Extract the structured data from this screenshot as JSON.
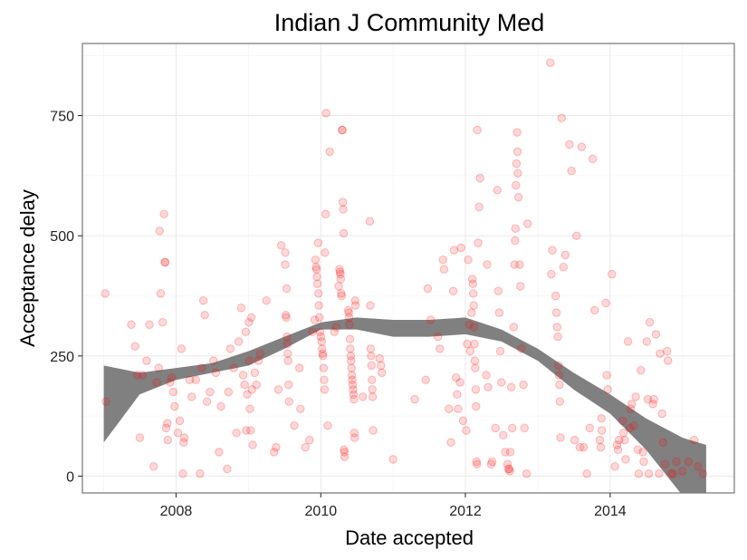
{
  "chart_data": {
    "type": "scatter",
    "title": "Indian J Community Med",
    "xlabel": "Date accepted",
    "ylabel": "Acceptance delay",
    "x_range": [
      "2006-09-15",
      "2015-09-20"
    ],
    "ylim": [
      -35,
      900
    ],
    "x_ticks": [
      {
        "date": "2008-01-01",
        "label": "2008"
      },
      {
        "date": "2010-01-01",
        "label": "2010"
      },
      {
        "date": "2012-01-01",
        "label": "2012"
      },
      {
        "date": "2014-01-01",
        "label": "2014"
      }
    ],
    "y_ticks": [
      {
        "value": 0,
        "label": "0"
      },
      {
        "value": 250,
        "label": "250"
      },
      {
        "value": 500,
        "label": "500"
      },
      {
        "value": 750,
        "label": "750"
      }
    ],
    "grid": true,
    "legend": "none",
    "colors": {
      "points": "#ff0000",
      "smooth_band": "#808080",
      "grid": "#ebebeb",
      "panel_border": "#7f7f7f"
    },
    "point_alpha": 0.15,
    "points": [
      [
        "2007-01-08",
        380
      ],
      [
        "2007-01-12",
        155
      ],
      [
        "2007-05-20",
        315
      ],
      [
        "2007-06-08",
        270
      ],
      [
        "2007-06-20",
        210
      ],
      [
        "2007-07-02",
        80
      ],
      [
        "2007-07-15",
        210
      ],
      [
        "2007-08-05",
        240
      ],
      [
        "2007-08-20",
        315
      ],
      [
        "2007-09-10",
        20
      ],
      [
        "2007-09-25",
        195
      ],
      [
        "2007-10-05",
        225
      ],
      [
        "2007-10-10",
        510
      ],
      [
        "2007-10-15",
        380
      ],
      [
        "2007-10-25",
        320
      ],
      [
        "2007-11-01",
        545
      ],
      [
        "2007-11-05",
        445
      ],
      [
        "2007-11-08",
        445
      ],
      [
        "2007-11-12",
        100
      ],
      [
        "2007-11-18",
        110
      ],
      [
        "2007-11-20",
        75
      ],
      [
        "2007-12-02",
        195
      ],
      [
        "2007-12-10",
        205
      ],
      [
        "2007-12-18",
        175
      ],
      [
        "2007-12-25",
        145
      ],
      [
        "2008-01-10",
        90
      ],
      [
        "2008-01-20",
        115
      ],
      [
        "2008-01-28",
        265
      ],
      [
        "2008-02-08",
        70
      ],
      [
        "2008-02-12",
        80
      ],
      [
        "2008-02-05",
        5
      ],
      [
        "2008-03-10",
        200
      ],
      [
        "2008-03-20",
        165
      ],
      [
        "2008-04-10",
        200
      ],
      [
        "2008-05-01",
        5
      ],
      [
        "2008-05-10",
        225
      ],
      [
        "2008-05-18",
        365
      ],
      [
        "2008-05-25",
        335
      ],
      [
        "2008-06-05",
        155
      ],
      [
        "2008-06-20",
        175
      ],
      [
        "2008-07-08",
        240
      ],
      [
        "2008-07-20",
        215
      ],
      [
        "2008-08-05",
        50
      ],
      [
        "2008-08-15",
        145
      ],
      [
        "2008-09-15",
        15
      ],
      [
        "2008-09-22",
        175
      ],
      [
        "2008-10-01",
        265
      ],
      [
        "2008-10-18",
        225
      ],
      [
        "2008-11-01",
        90
      ],
      [
        "2008-11-12",
        280
      ],
      [
        "2008-11-25",
        350
      ],
      [
        "2008-12-05",
        210
      ],
      [
        "2008-12-12",
        190
      ],
      [
        "2008-12-18",
        300
      ],
      [
        "2008-12-20",
        95
      ],
      [
        "2008-12-25",
        170
      ],
      [
        "2009-01-03",
        320
      ],
      [
        "2009-01-05",
        240
      ],
      [
        "2009-01-08",
        140
      ],
      [
        "2009-01-12",
        95
      ],
      [
        "2009-01-15",
        330
      ],
      [
        "2009-01-18",
        180
      ],
      [
        "2009-01-22",
        65
      ],
      [
        "2009-02-01",
        215
      ],
      [
        "2009-02-10",
        190
      ],
      [
        "2009-02-20",
        240
      ],
      [
        "2009-03-01",
        255
      ],
      [
        "2009-04-01",
        365
      ],
      [
        "2009-05-10",
        50
      ],
      [
        "2009-05-20",
        60
      ],
      [
        "2009-06-01",
        180
      ],
      [
        "2009-06-15",
        480
      ],
      [
        "2009-07-05",
        440
      ],
      [
        "2009-07-05",
        465
      ],
      [
        "2009-07-08",
        335
      ],
      [
        "2009-07-10",
        330
      ],
      [
        "2009-07-12",
        390
      ],
      [
        "2009-07-14",
        290
      ],
      [
        "2009-07-16",
        275
      ],
      [
        "2009-07-18",
        255
      ],
      [
        "2009-07-20",
        240
      ],
      [
        "2009-07-22",
        190
      ],
      [
        "2009-07-25",
        155
      ],
      [
        "2009-08-20",
        105
      ],
      [
        "2009-09-15",
        225
      ],
      [
        "2009-09-20",
        140
      ],
      [
        "2009-10-15",
        60
      ],
      [
        "2009-11-05",
        75
      ],
      [
        "2009-11-20",
        300
      ],
      [
        "2009-12-01",
        325
      ],
      [
        "2009-12-05",
        450
      ],
      [
        "2009-12-08",
        435
      ],
      [
        "2009-12-10",
        430
      ],
      [
        "2009-12-12",
        415
      ],
      [
        "2009-12-15",
        400
      ],
      [
        "2009-12-18",
        485
      ],
      [
        "2009-12-20",
        380
      ],
      [
        "2009-12-22",
        355
      ],
      [
        "2009-12-25",
        330
      ],
      [
        "2009-12-28",
        300
      ],
      [
        "2010-01-02",
        290
      ],
      [
        "2010-01-05",
        280
      ],
      [
        "2010-01-08",
        265
      ],
      [
        "2010-01-10",
        255
      ],
      [
        "2010-01-12",
        250
      ],
      [
        "2010-01-15",
        225
      ],
      [
        "2010-01-18",
        200
      ],
      [
        "2010-01-20",
        180
      ],
      [
        "2010-01-22",
        465
      ],
      [
        "2010-01-25",
        545
      ],
      [
        "2010-01-28",
        755
      ],
      [
        "2010-02-05",
        105
      ],
      [
        "2010-02-15",
        675
      ],
      [
        "2010-03-10",
        300
      ],
      [
        "2010-03-20",
        310
      ],
      [
        "2010-04-01",
        395
      ],
      [
        "2010-04-05",
        430
      ],
      [
        "2010-04-08",
        425
      ],
      [
        "2010-04-10",
        420
      ],
      [
        "2010-04-12",
        410
      ],
      [
        "2010-04-14",
        380
      ],
      [
        "2010-04-16",
        375
      ],
      [
        "2010-04-18",
        720
      ],
      [
        "2010-04-20",
        720
      ],
      [
        "2010-04-22",
        570
      ],
      [
        "2010-04-24",
        555
      ],
      [
        "2010-04-26",
        505
      ],
      [
        "2010-04-28",
        55
      ],
      [
        "2010-04-30",
        50
      ],
      [
        "2010-05-01",
        40
      ],
      [
        "2010-05-20",
        345
      ],
      [
        "2010-05-22",
        340
      ],
      [
        "2010-05-24",
        330
      ],
      [
        "2010-05-26",
        315
      ],
      [
        "2010-05-28",
        285
      ],
      [
        "2010-05-30",
        265
      ],
      [
        "2010-06-01",
        250
      ],
      [
        "2010-06-03",
        240
      ],
      [
        "2010-06-05",
        225
      ],
      [
        "2010-06-07",
        210
      ],
      [
        "2010-06-09",
        200
      ],
      [
        "2010-06-11",
        190
      ],
      [
        "2010-06-13",
        180
      ],
      [
        "2010-06-15",
        170
      ],
      [
        "2010-06-17",
        160
      ],
      [
        "2010-06-19",
        90
      ],
      [
        "2010-06-21",
        80
      ],
      [
        "2010-06-23",
        365
      ],
      [
        "2010-06-25",
        355
      ],
      [
        "2010-08-01",
        165
      ],
      [
        "2010-09-05",
        530
      ],
      [
        "2010-09-08",
        355
      ],
      [
        "2010-09-10",
        265
      ],
      [
        "2010-09-12",
        250
      ],
      [
        "2010-09-14",
        230
      ],
      [
        "2010-09-16",
        200
      ],
      [
        "2010-09-18",
        180
      ],
      [
        "2010-09-20",
        165
      ],
      [
        "2010-09-22",
        95
      ],
      [
        "2010-10-25",
        245
      ],
      [
        "2010-11-01",
        230
      ],
      [
        "2010-11-05",
        215
      ],
      [
        "2011-01-01",
        35
      ],
      [
        "2011-04-20",
        160
      ],
      [
        "2011-06-15",
        200
      ],
      [
        "2011-06-25",
        390
      ],
      [
        "2011-07-10",
        325
      ],
      [
        "2011-08-15",
        290
      ],
      [
        "2011-08-25",
        265
      ],
      [
        "2011-09-10",
        450
      ],
      [
        "2011-09-15",
        430
      ],
      [
        "2011-10-10",
        140
      ],
      [
        "2011-10-20",
        70
      ],
      [
        "2011-11-01",
        385
      ],
      [
        "2011-11-05",
        470
      ],
      [
        "2011-11-15",
        205
      ],
      [
        "2011-11-20",
        170
      ],
      [
        "2011-11-25",
        140
      ],
      [
        "2011-12-05",
        195
      ],
      [
        "2011-12-10",
        475
      ],
      [
        "2011-12-20",
        115
      ],
      [
        "2012-01-05",
        95
      ],
      [
        "2012-01-10",
        275
      ],
      [
        "2012-01-15",
        450
      ],
      [
        "2012-01-20",
        315
      ],
      [
        "2012-01-25",
        260
      ],
      [
        "2012-02-01",
        340
      ],
      [
        "2012-02-05",
        410
      ],
      [
        "2012-02-08",
        400
      ],
      [
        "2012-02-10",
        380
      ],
      [
        "2012-02-12",
        355
      ],
      [
        "2012-02-14",
        310
      ],
      [
        "2012-02-16",
        275
      ],
      [
        "2012-02-18",
        240
      ],
      [
        "2012-02-20",
        225
      ],
      [
        "2012-02-22",
        180
      ],
      [
        "2012-02-24",
        145
      ],
      [
        "2012-02-26",
        30
      ],
      [
        "2012-02-28",
        25
      ],
      [
        "2012-03-01",
        720
      ],
      [
        "2012-03-05",
        485
      ],
      [
        "2012-03-10",
        560
      ],
      [
        "2012-03-15",
        620
      ],
      [
        "2012-04-15",
        210
      ],
      [
        "2012-04-20",
        440
      ],
      [
        "2012-04-25",
        185
      ],
      [
        "2012-05-10",
        25
      ],
      [
        "2012-05-15",
        30
      ],
      [
        "2012-06-01",
        100
      ],
      [
        "2012-06-10",
        595
      ],
      [
        "2012-06-15",
        385
      ],
      [
        "2012-06-20",
        340
      ],
      [
        "2012-06-25",
        260
      ],
      [
        "2012-07-01",
        195
      ],
      [
        "2012-07-10",
        85
      ],
      [
        "2012-07-20",
        50
      ],
      [
        "2012-08-01",
        25
      ],
      [
        "2012-08-05",
        15
      ],
      [
        "2012-08-10",
        15
      ],
      [
        "2012-08-12",
        10
      ],
      [
        "2012-08-15",
        50
      ],
      [
        "2012-08-20",
        185
      ],
      [
        "2012-08-25",
        100
      ],
      [
        "2012-09-01",
        310
      ],
      [
        "2012-09-05",
        440
      ],
      [
        "2012-09-08",
        490
      ],
      [
        "2012-09-10",
        515
      ],
      [
        "2012-09-12",
        605
      ],
      [
        "2012-09-15",
        650
      ],
      [
        "2012-09-18",
        715
      ],
      [
        "2012-09-20",
        675
      ],
      [
        "2012-09-22",
        630
      ],
      [
        "2012-09-25",
        580
      ],
      [
        "2012-10-01",
        440
      ],
      [
        "2012-10-05",
        395
      ],
      [
        "2012-10-10",
        265
      ],
      [
        "2012-10-20",
        190
      ],
      [
        "2012-10-25",
        100
      ],
      [
        "2012-11-05",
        5
      ],
      [
        "2012-11-10",
        525
      ],
      [
        "2013-03-05",
        860
      ],
      [
        "2013-03-10",
        420
      ],
      [
        "2013-03-15",
        470
      ],
      [
        "2013-04-01",
        375
      ],
      [
        "2013-04-05",
        340
      ],
      [
        "2013-04-08",
        310
      ],
      [
        "2013-04-12",
        290
      ],
      [
        "2013-04-15",
        230
      ],
      [
        "2013-04-18",
        210
      ],
      [
        "2013-04-20",
        190
      ],
      [
        "2013-04-22",
        155
      ],
      [
        "2013-04-25",
        80
      ],
      [
        "2013-05-01",
        745
      ],
      [
        "2013-05-10",
        435
      ],
      [
        "2013-05-20",
        460
      ],
      [
        "2013-06-10",
        690
      ],
      [
        "2013-06-20",
        635
      ],
      [
        "2013-07-05",
        75
      ],
      [
        "2013-07-15",
        500
      ],
      [
        "2013-08-01",
        60
      ],
      [
        "2013-08-10",
        685
      ],
      [
        "2013-08-20",
        60
      ],
      [
        "2013-09-05",
        5
      ],
      [
        "2013-09-20",
        100
      ],
      [
        "2013-10-05",
        660
      ],
      [
        "2013-10-15",
        345
      ],
      [
        "2013-11-10",
        75
      ],
      [
        "2013-11-15",
        60
      ],
      [
        "2013-11-18",
        120
      ],
      [
        "2013-11-20",
        95
      ],
      [
        "2013-12-10",
        360
      ],
      [
        "2013-12-15",
        210
      ],
      [
        "2013-12-20",
        180
      ],
      [
        "2014-01-10",
        420
      ],
      [
        "2014-01-25",
        20
      ],
      [
        "2014-02-05",
        65
      ],
      [
        "2014-02-10",
        55
      ],
      [
        "2014-02-15",
        75
      ],
      [
        "2014-03-05",
        115
      ],
      [
        "2014-03-10",
        90
      ],
      [
        "2014-03-15",
        75
      ],
      [
        "2014-03-20",
        35
      ],
      [
        "2014-04-01",
        280
      ],
      [
        "2014-04-10",
        100
      ],
      [
        "2014-04-15",
        140
      ],
      [
        "2014-04-20",
        150
      ],
      [
        "2014-05-01",
        105
      ],
      [
        "2014-05-10",
        165
      ],
      [
        "2014-05-20",
        55
      ],
      [
        "2014-05-25",
        5
      ],
      [
        "2014-06-05",
        220
      ],
      [
        "2014-06-15",
        50
      ],
      [
        "2014-06-20",
        30
      ],
      [
        "2014-07-05",
        280
      ],
      [
        "2014-07-10",
        160
      ],
      [
        "2014-07-15",
        5
      ],
      [
        "2014-07-20",
        320
      ],
      [
        "2014-08-05",
        150
      ],
      [
        "2014-08-10",
        160
      ],
      [
        "2014-08-20",
        295
      ],
      [
        "2014-09-05",
        5
      ],
      [
        "2014-09-10",
        255
      ],
      [
        "2014-09-20",
        130
      ],
      [
        "2014-09-25",
        70
      ],
      [
        "2014-10-05",
        25
      ],
      [
        "2014-10-15",
        260
      ],
      [
        "2014-10-20",
        240
      ],
      [
        "2014-11-05",
        5
      ],
      [
        "2014-11-15",
        5
      ],
      [
        "2014-12-01",
        30
      ],
      [
        "2015-01-01",
        10
      ],
      [
        "2015-02-01",
        30
      ],
      [
        "2015-03-01",
        75
      ],
      [
        "2015-03-20",
        20
      ],
      [
        "2015-04-15",
        5
      ]
    ],
    "smooth": {
      "x": [
        "2007-01-01",
        "2007-07-01",
        "2008-01-01",
        "2008-07-01",
        "2009-01-01",
        "2009-07-01",
        "2010-01-01",
        "2010-07-01",
        "2011-01-01",
        "2011-07-01",
        "2012-01-01",
        "2012-07-01",
        "2013-01-01",
        "2013-07-01",
        "2014-01-01",
        "2014-07-01",
        "2015-01-01",
        "2015-05-01"
      ],
      "lower": [
        70,
        170,
        200,
        215,
        230,
        265,
        305,
        305,
        290,
        290,
        295,
        280,
        240,
        180,
        130,
        55,
        -40,
        -120
      ],
      "upper": [
        230,
        215,
        225,
        235,
        260,
        290,
        320,
        330,
        325,
        325,
        330,
        305,
        265,
        215,
        170,
        120,
        80,
        65
      ]
    }
  }
}
